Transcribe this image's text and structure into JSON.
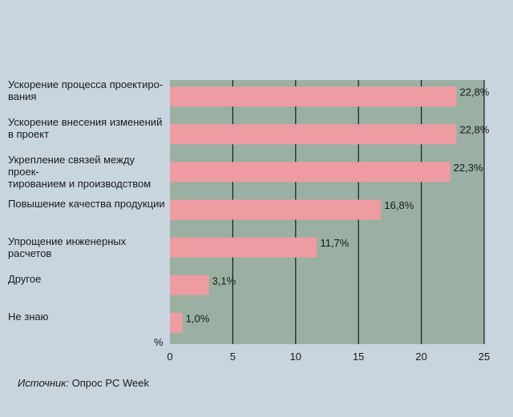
{
  "chart_data": {
    "type": "bar",
    "orientation": "horizontal",
    "categories": [
      "Ускорение процесса проектиро-\nвания",
      "Ускорение внесения изменений\nв проект",
      "Укрепление связей между проек-\nтированием и производством",
      "Повышение качества продукции",
      "Упрощение инженерных расчетов",
      "Другое",
      "Не знаю"
    ],
    "values": [
      22.8,
      22.8,
      22.3,
      16.8,
      11.7,
      3.1,
      1.0
    ],
    "value_labels": [
      "22,8%",
      "22,8%",
      "22,3%",
      "16,8%",
      "11,7%",
      "3,1%",
      "1,0%"
    ],
    "xlim": [
      0,
      25
    ],
    "xticks": [
      0,
      5,
      10,
      15,
      20,
      25
    ],
    "xtick_labels": [
      "0",
      "5",
      "10",
      "15",
      "20",
      "25"
    ],
    "unit_label": "%",
    "grid": true,
    "colors": {
      "bar": "#ee9ba2",
      "plot_background": "#99b0a2",
      "page_background": "#c9d5de",
      "grid": "#1a1a1a"
    }
  },
  "source": {
    "prefix": "Источник:",
    "text": " Опрос PC Week"
  }
}
